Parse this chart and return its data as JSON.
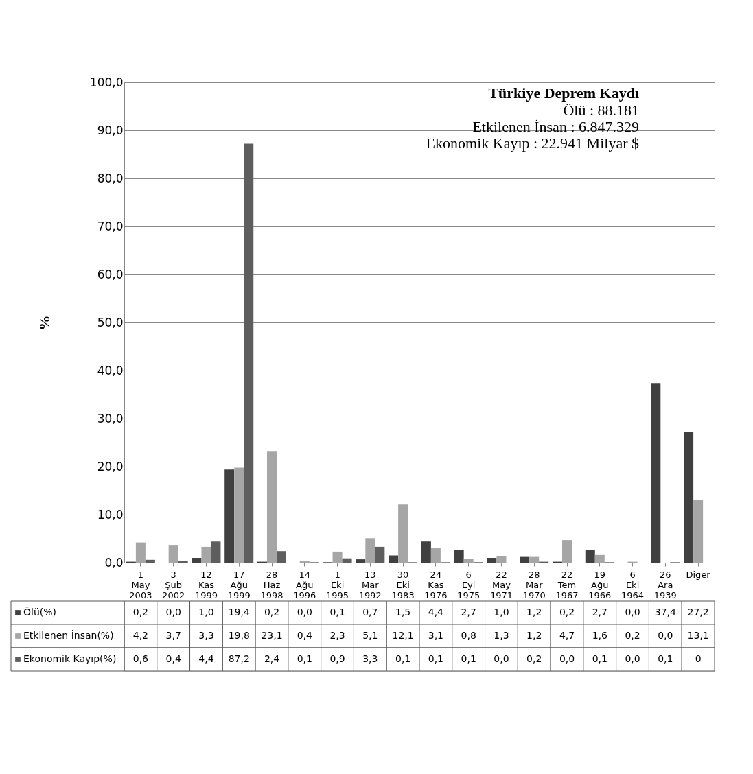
{
  "chart_data": {
    "type": "bar",
    "title": "Türkiye Deprem Kaydı",
    "subtitle": [
      "Ölü : 88.181",
      "Etkilenen İnsan : 6.847.329",
      "Ekonomik Kayıp : 22.941 Milyar $"
    ],
    "ylabel": "%",
    "categories": [
      "1 May 2003",
      "3 Şub 2002",
      "12 Kas 1999",
      "17 Ağu 1999",
      "28 Haz 1998",
      "14 Ağu 1996",
      "1 Eki 1995",
      "13 Mar 1992",
      "30 Eki 1983",
      "24 Kas 1976",
      "6 Eyl 1975",
      "22 May 1971",
      "28 Mar 1970",
      "22 Tem 1967",
      "19 Ağu 1966",
      "6 Eki 1964",
      "26 Ara 1939",
      "Diğer"
    ],
    "series": [
      {
        "name": "Ölü(%)",
        "color": "#404040",
        "values": [
          0.2,
          0.0,
          1.0,
          19.4,
          0.2,
          0.0,
          0.1,
          0.7,
          1.5,
          4.4,
          2.7,
          1.0,
          1.2,
          0.2,
          2.7,
          0.0,
          37.4,
          27.2
        ],
        "value_labels": [
          "0,2",
          "0,0",
          "1,0",
          "19,4",
          "0,2",
          "0,0",
          "0,1",
          "0,7",
          "1,5",
          "4,4",
          "2,7",
          "1,0",
          "1,2",
          "0,2",
          "2,7",
          "0,0",
          "37,4",
          "27,2"
        ]
      },
      {
        "name": "Etkilenen İnsan(%)",
        "color": "#a6a6a6",
        "values": [
          4.2,
          3.7,
          3.3,
          19.8,
          23.1,
          0.4,
          2.3,
          5.1,
          12.1,
          3.1,
          0.8,
          1.3,
          1.2,
          4.7,
          1.6,
          0.2,
          0.0,
          13.1
        ],
        "value_labels": [
          "4,2",
          "3,7",
          "3,3",
          "19,8",
          "23,1",
          "0,4",
          "2,3",
          "5,1",
          "12,1",
          "3,1",
          "0,8",
          "1,3",
          "1,2",
          "4,7",
          "1,6",
          "0,2",
          "0,0",
          "13,1"
        ]
      },
      {
        "name": "Ekonomik Kayıp(%)",
        "color": "#5e5e5e",
        "values": [
          0.6,
          0.4,
          4.4,
          87.2,
          2.4,
          0.1,
          0.9,
          3.3,
          0.1,
          0.1,
          0.1,
          0.0,
          0.2,
          0.0,
          0.1,
          0.0,
          0.1,
          0
        ],
        "value_labels": [
          "0,6",
          "0,4",
          "4,4",
          "87,2",
          "2,4",
          "0,1",
          "0,9",
          "3,3",
          "0,1",
          "0,1",
          "0,1",
          "0,0",
          "0,2",
          "0,0",
          "0,1",
          "0,0",
          "0,1",
          "0"
        ]
      }
    ],
    "ylim": [
      0,
      100
    ],
    "yticks": [
      {
        "value": 0,
        "label": "0,0"
      },
      {
        "value": 10,
        "label": "10,0"
      },
      {
        "value": 20,
        "label": "20,0"
      },
      {
        "value": 30,
        "label": "30,0"
      },
      {
        "value": 40,
        "label": "40,0"
      },
      {
        "value": 50,
        "label": "50,0"
      },
      {
        "value": 60,
        "label": "60,0"
      },
      {
        "value": 70,
        "label": "70,0"
      },
      {
        "value": 80,
        "label": "80,0"
      },
      {
        "value": 90,
        "label": "90,0"
      },
      {
        "value": 100,
        "label": "100,0"
      }
    ],
    "grid": "y",
    "legend": "bottom left"
  }
}
